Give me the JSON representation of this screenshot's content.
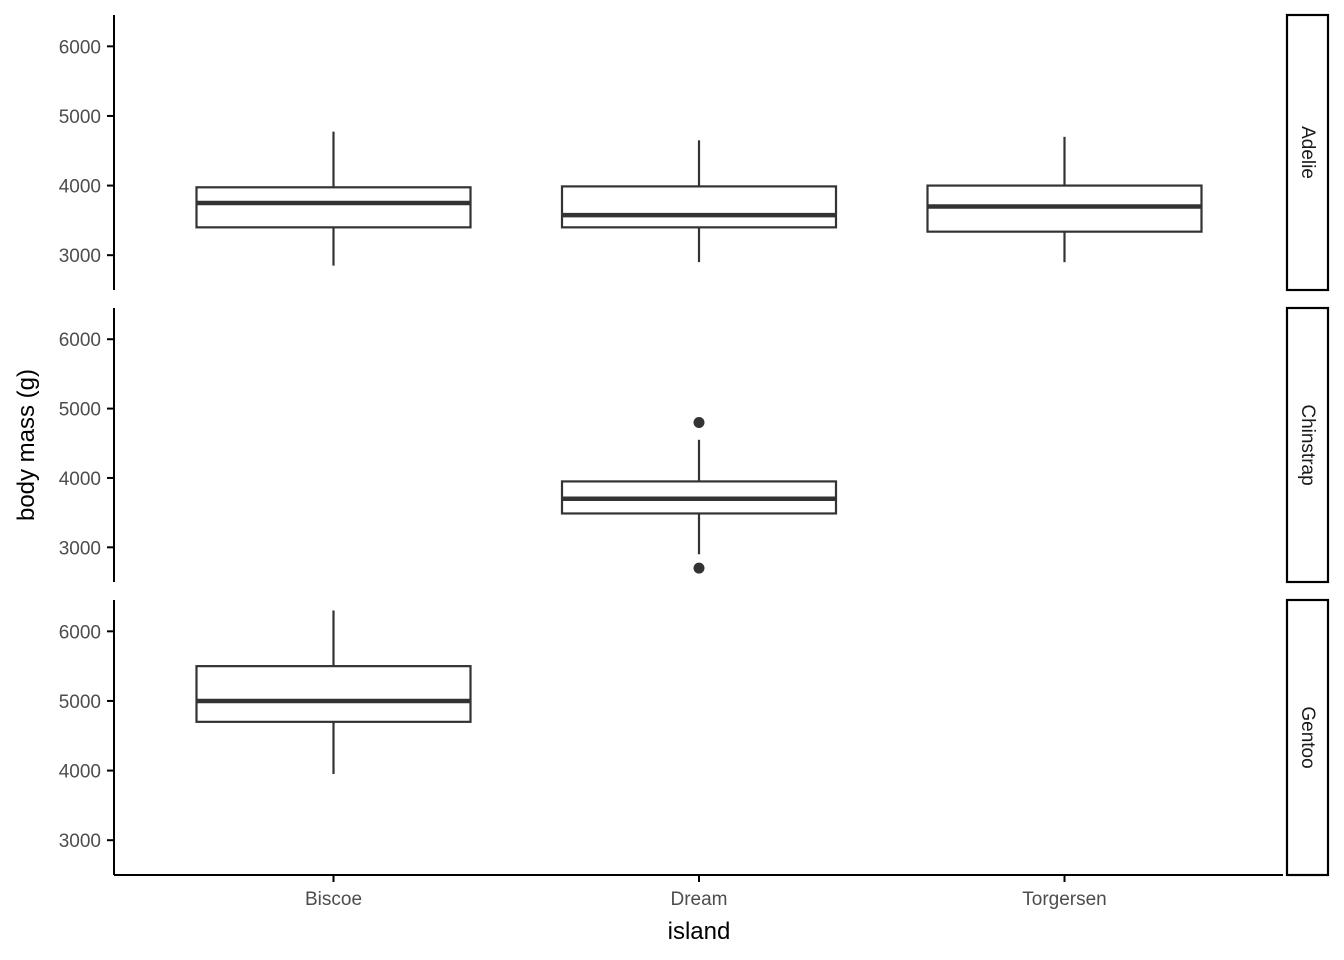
{
  "chart_data": {
    "type": "boxplot",
    "xlabel": "island",
    "ylabel": "body mass (g)",
    "categories": [
      "Biscoe",
      "Dream",
      "Torgersen"
    ],
    "yticks": [
      3000,
      4000,
      5000,
      6000
    ],
    "ylim": [
      2500,
      6450
    ],
    "facets": [
      {
        "label": "Adelie",
        "boxes": [
          {
            "category": "Biscoe",
            "lower_whisker": 2850,
            "q1": 3400,
            "median": 3750,
            "q3": 3975,
            "upper_whisker": 4775,
            "outliers": []
          },
          {
            "category": "Dream",
            "lower_whisker": 2900,
            "q1": 3400,
            "median": 3575,
            "q3": 3988,
            "upper_whisker": 4650,
            "outliers": []
          },
          {
            "category": "Torgersen",
            "lower_whisker": 2900,
            "q1": 3338,
            "median": 3700,
            "q3": 4000,
            "upper_whisker": 4700,
            "outliers": []
          }
        ]
      },
      {
        "label": "Chinstrap",
        "boxes": [
          {
            "category": "Dream",
            "lower_whisker": 2900,
            "q1": 3488,
            "median": 3700,
            "q3": 3950,
            "upper_whisker": 4550,
            "outliers": [
              2700,
              4800
            ]
          }
        ]
      },
      {
        "label": "Gentoo",
        "boxes": [
          {
            "category": "Biscoe",
            "lower_whisker": 3950,
            "q1": 4700,
            "median": 5000,
            "q3": 5500,
            "upper_whisker": 6300,
            "outliers": []
          }
        ]
      }
    ],
    "grid": false,
    "legend": "none",
    "colors": {
      "box_line": "#333333",
      "box_fill": "#ffffff",
      "axis": "#000000",
      "tick_text": "#4d4d4d"
    }
  }
}
